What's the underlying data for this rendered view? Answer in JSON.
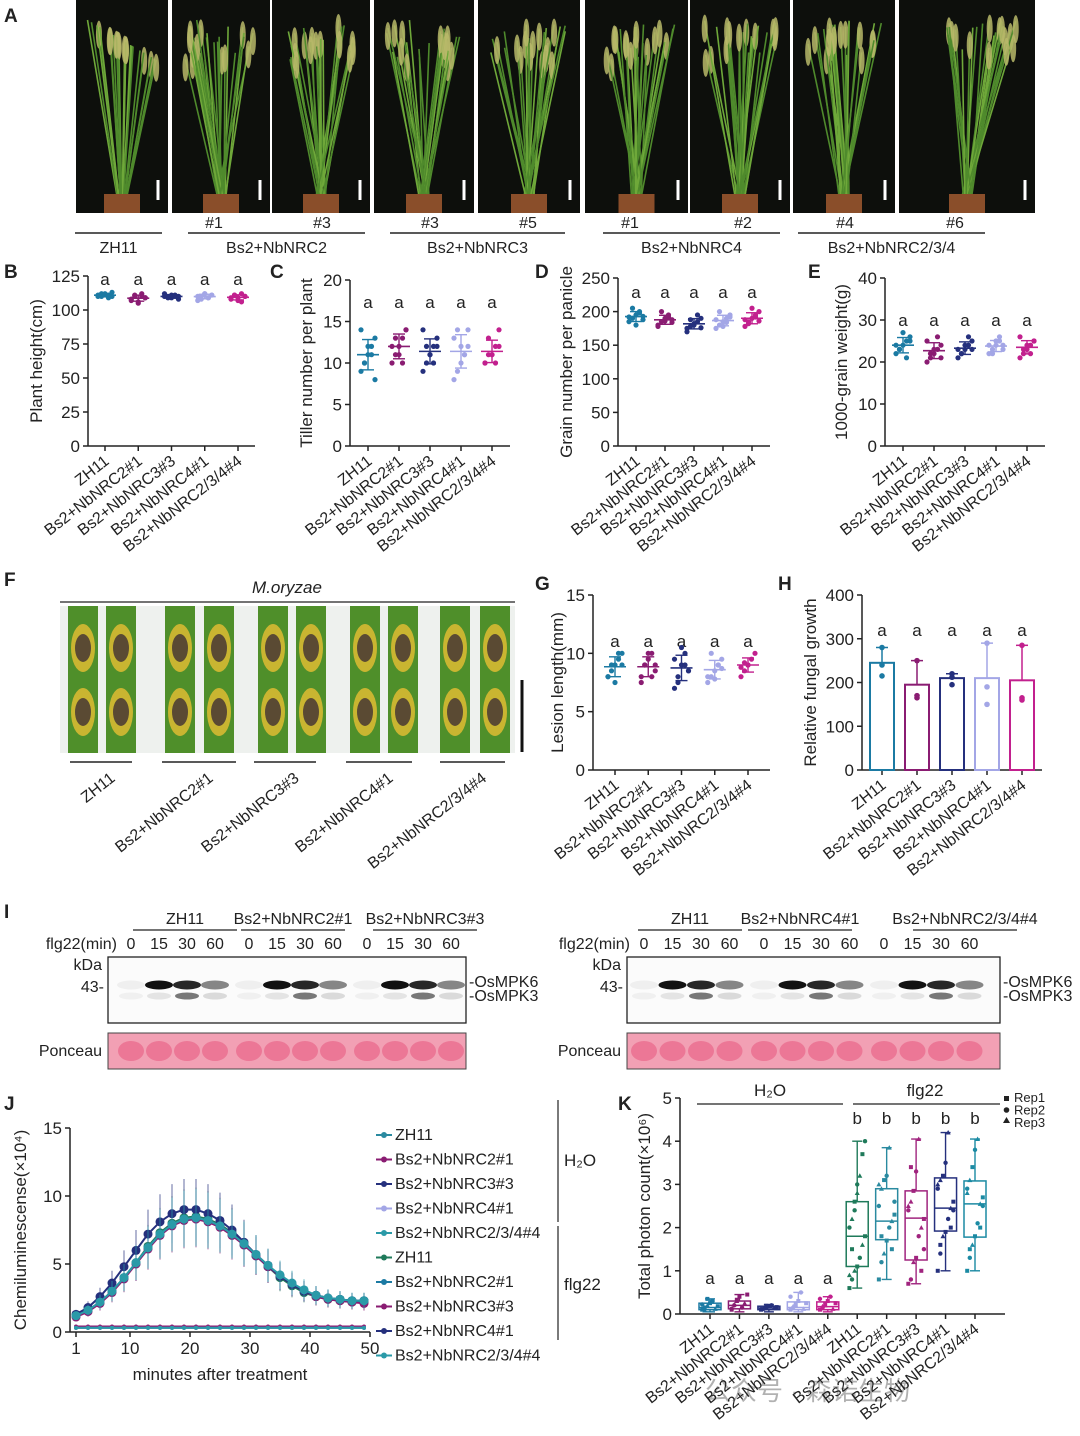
{
  "panel_labels": {
    "A": "A",
    "B": "B",
    "C": "C",
    "D": "D",
    "E": "E",
    "F": "F",
    "G": "G",
    "H": "H",
    "I": "I",
    "J": "J",
    "K": "K"
  },
  "colors": [
    "#1b7aa3",
    "#8a1c72",
    "#25307d",
    "#a3a6e6",
    "#c2208e"
  ],
  "panelA": {
    "sub_labels": [
      "#1",
      "#3",
      "#3",
      "#5",
      "#1",
      "#2",
      "#4",
      "#6"
    ],
    "groups": [
      "ZH11",
      "Bs2+NbNRC2",
      "Bs2+NbNRC3",
      "Bs2+NbNRC4",
      "Bs2+NbNRC2/3/4"
    ]
  },
  "panelF": {
    "title": "M.oryzae",
    "groups": [
      "ZH11",
      "Bs2+NbNRC2#1",
      "Bs2+NbNRC3#3",
      "Bs2+NbNRC4#1",
      "Bs2+NbNRC2/3/4#4"
    ]
  },
  "panelI": {
    "treatment": "flg22(min)",
    "times": [
      "0",
      "15",
      "30",
      "60"
    ],
    "kda": "kDa",
    "marker": "43-",
    "bands": [
      "-OsMPK6",
      "-OsMPK3"
    ],
    "loading": "Ponceau",
    "left_groups": [
      "ZH11",
      "Bs2+NbNRC2#1",
      "Bs2+NbNRC3#3"
    ],
    "right_groups": [
      "ZH11",
      "Bs2+NbNRC4#1",
      "Bs2+NbNRC2/3/4#4"
    ]
  },
  "watermark": "公众号 · 森诺生物",
  "chart_data": [
    {
      "panel": "B",
      "type": "scatter",
      "ylabel": "Plant height(cm)",
      "ylim": [
        0,
        125
      ],
      "yticks": [
        0,
        25,
        50,
        75,
        100,
        125
      ],
      "categories": [
        "ZH11",
        "Bs2+NbNRC2#1",
        "Bs2+NbNRC3#3",
        "Bs2+NbNRC4#1",
        "Bs2+NbNRC2/3/4#4"
      ],
      "letters": [
        "a",
        "a",
        "a",
        "a",
        "a"
      ],
      "points": [
        [
          110,
          112,
          111,
          109,
          113,
          111,
          110,
          112,
          111,
          110
        ],
        [
          108,
          110,
          105,
          112,
          109,
          107,
          111,
          106,
          110,
          109
        ],
        [
          110,
          109,
          111,
          110,
          108,
          112,
          110,
          109,
          111,
          110
        ],
        [
          110,
          108,
          112,
          109,
          111,
          107,
          110,
          112,
          109,
          111
        ],
        [
          109,
          111,
          107,
          112,
          110,
          108,
          111,
          109,
          106,
          110
        ]
      ]
    },
    {
      "panel": "C",
      "type": "scatter",
      "ylabel": "Tiller number per plant",
      "ylim": [
        0,
        20
      ],
      "yticks": [
        0,
        5,
        10,
        15,
        20
      ],
      "categories": [
        "ZH11",
        "Bs2+NbNRC2#1",
        "Bs2+NbNRC3#3",
        "Bs2+NbNRC4#1",
        "Bs2+NbNRC2/3/4#4"
      ],
      "letters": [
        "a",
        "a",
        "a",
        "a",
        "a"
      ],
      "points": [
        [
          9,
          10,
          11,
          12,
          13,
          14,
          10,
          12,
          11,
          8
        ],
        [
          10,
          11,
          12,
          13,
          14,
          12,
          13,
          11,
          10,
          14
        ],
        [
          9,
          10,
          11,
          12,
          13,
          14,
          12,
          11,
          10,
          12
        ],
        [
          8,
          9,
          10,
          11,
          12,
          13,
          14,
          12,
          11,
          14
        ],
        [
          10,
          11,
          11,
          12,
          12,
          10,
          13,
          11,
          10,
          14
        ]
      ]
    },
    {
      "panel": "D",
      "type": "scatter",
      "ylabel": "Grain number per panicle",
      "ylim": [
        0,
        250
      ],
      "yticks": [
        0,
        50,
        100,
        150,
        200,
        250
      ],
      "categories": [
        "ZH11",
        "Bs2+NbNRC2#1",
        "Bs2+NbNRC3#3",
        "Bs2+NbNRC4#1",
        "Bs2+NbNRC2/3/4#4"
      ],
      "letters": [
        "a",
        "a",
        "a",
        "a",
        "a"
      ],
      "points": [
        [
          185,
          190,
          195,
          200,
          188,
          192,
          205,
          180,
          198,
          193
        ],
        [
          180,
          185,
          190,
          195,
          188,
          178,
          200,
          186,
          192,
          184
        ],
        [
          170,
          178,
          182,
          185,
          190,
          175,
          188,
          180,
          195,
          176
        ],
        [
          175,
          180,
          185,
          190,
          195,
          188,
          200,
          178,
          184,
          192
        ],
        [
          178,
          185,
          190,
          195,
          200,
          188,
          182,
          205,
          192,
          186
        ]
      ]
    },
    {
      "panel": "E",
      "type": "scatter",
      "ylabel": "1000-grain weight(g)",
      "ylim": [
        0,
        40
      ],
      "yticks": [
        0,
        10,
        20,
        30,
        40
      ],
      "categories": [
        "ZH11",
        "Bs2+NbNRC2#1",
        "Bs2+NbNRC3#3",
        "Bs2+NbNRC4#1",
        "Bs2+NbNRC2/3/4#4"
      ],
      "letters": [
        "a",
        "a",
        "a",
        "a",
        "a"
      ],
      "points": [
        [
          22,
          23,
          24,
          25,
          26,
          24,
          23,
          27,
          21,
          25
        ],
        [
          20,
          21,
          22,
          23,
          24,
          25,
          22,
          23,
          26,
          21
        ],
        [
          21,
          22,
          23,
          24,
          25,
          23,
          22,
          24,
          26,
          23
        ],
        [
          22,
          23,
          24,
          25,
          23,
          24,
          22,
          25,
          26,
          24
        ],
        [
          21,
          22,
          23,
          24,
          25,
          26,
          23,
          24,
          22,
          25
        ]
      ]
    },
    {
      "panel": "G",
      "type": "scatter",
      "ylabel": "Lesion length(mm)",
      "ylim": [
        0,
        15
      ],
      "yticks": [
        0,
        5,
        10,
        15
      ],
      "categories": [
        "ZH11",
        "Bs2+NbNRC2#1",
        "Bs2+NbNRC3#3",
        "Bs2+NbNRC4#1",
        "Bs2+NbNRC2/3/4#4"
      ],
      "letters": [
        "a",
        "a",
        "a",
        "a",
        "a"
      ],
      "points": [
        [
          8,
          8.5,
          9,
          9.5,
          10,
          8,
          9,
          7.5,
          10,
          9
        ],
        [
          8,
          9,
          9.5,
          10,
          8.5,
          7.5,
          9,
          10,
          8,
          9
        ],
        [
          7,
          8,
          9,
          10,
          8.5,
          9.5,
          7.5,
          10.5,
          9,
          8.5
        ],
        [
          7.5,
          8,
          8.5,
          9,
          9.5,
          8,
          10,
          7.8,
          9,
          8.7
        ],
        [
          8,
          8.5,
          9,
          9.5,
          10,
          8.8,
          9.2,
          9
        ]
      ]
    },
    {
      "panel": "H",
      "type": "bar",
      "ylabel": "Relative fungal growth",
      "ylim": [
        0,
        400
      ],
      "yticks": [
        0,
        100,
        200,
        300,
        400
      ],
      "categories": [
        "ZH11",
        "Bs2+NbNRC2#1",
        "Bs2+NbNRC3#3",
        "Bs2+NbNRC4#1",
        "Bs2+NbNRC2/3/4#4"
      ],
      "letters": [
        "a",
        "a",
        "a",
        "a",
        "a"
      ],
      "values": [
        245,
        195,
        210,
        210,
        205
      ],
      "points": [
        [
          280,
          215,
          240
        ],
        [
          250,
          165,
          170
        ],
        [
          220,
          195,
          212
        ],
        [
          290,
          150,
          190
        ],
        [
          285,
          165,
          160
        ]
      ]
    },
    {
      "panel": "J",
      "type": "line",
      "xlabel": "minutes after treatment",
      "ylabel": "Chemiluminescense(×10⁴)",
      "xlim": [
        0,
        50
      ],
      "xticks": [
        1,
        10,
        20,
        30,
        40,
        50
      ],
      "ylim": [
        0,
        15
      ],
      "yticks": [
        0,
        5,
        10,
        15
      ],
      "x": [
        1,
        3,
        5,
        7,
        9,
        11,
        13,
        15,
        17,
        19,
        21,
        23,
        25,
        27,
        29,
        31,
        33,
        35,
        37,
        39,
        41,
        43,
        45,
        47,
        49
      ],
      "legend_groups": [
        "H₂O",
        "flg22"
      ],
      "series": [
        {
          "name": "ZH11",
          "group": "H2O",
          "color": "#2a8aa0",
          "values": [
            0.3,
            0.3,
            0.3,
            0.3,
            0.3,
            0.3,
            0.3,
            0.3,
            0.3,
            0.3,
            0.3,
            0.3,
            0.3,
            0.3,
            0.3,
            0.3,
            0.3,
            0.3,
            0.3,
            0.3,
            0.3,
            0.3,
            0.3,
            0.3,
            0.3
          ]
        },
        {
          "name": "Bs2+NbNRC2#1",
          "group": "H2O",
          "color": "#8a1c72",
          "values": [
            0.4,
            0.4,
            0.4,
            0.4,
            0.4,
            0.4,
            0.4,
            0.4,
            0.4,
            0.4,
            0.4,
            0.4,
            0.4,
            0.4,
            0.4,
            0.4,
            0.4,
            0.4,
            0.4,
            0.4,
            0.4,
            0.4,
            0.4,
            0.4,
            0.4
          ]
        },
        {
          "name": "Bs2+NbNRC3#3",
          "group": "H2O",
          "color": "#25307d",
          "values": [
            0.3,
            0.3,
            0.3,
            0.3,
            0.3,
            0.3,
            0.3,
            0.3,
            0.3,
            0.3,
            0.3,
            0.3,
            0.3,
            0.3,
            0.3,
            0.3,
            0.3,
            0.3,
            0.3,
            0.3,
            0.3,
            0.3,
            0.3,
            0.3,
            0.3
          ]
        },
        {
          "name": "Bs2+NbNRC4#1",
          "group": "H2O",
          "color": "#a3a6e6",
          "values": [
            0.3,
            0.3,
            0.3,
            0.3,
            0.3,
            0.3,
            0.3,
            0.3,
            0.3,
            0.3,
            0.3,
            0.3,
            0.3,
            0.3,
            0.3,
            0.3,
            0.3,
            0.3,
            0.3,
            0.3,
            0.3,
            0.3,
            0.3,
            0.3,
            0.3
          ]
        },
        {
          "name": "Bs2+NbNRC2/3/4#4",
          "group": "H2O",
          "color": "#2a9aa8",
          "values": [
            0.3,
            0.3,
            0.3,
            0.3,
            0.3,
            0.3,
            0.3,
            0.3,
            0.3,
            0.3,
            0.3,
            0.3,
            0.3,
            0.3,
            0.3,
            0.3,
            0.3,
            0.3,
            0.3,
            0.3,
            0.3,
            0.3,
            0.3,
            0.3,
            0.3
          ]
        },
        {
          "name": "ZH11",
          "group": "flg22",
          "color": "#1f7a5a",
          "values": [
            1.2,
            1.6,
            2.2,
            3.0,
            4.0,
            5.1,
            6.3,
            7.3,
            8.0,
            8.4,
            8.5,
            8.3,
            7.9,
            7.3,
            6.5,
            5.6,
            4.8,
            4.0,
            3.4,
            2.9,
            2.6,
            2.4,
            2.3,
            2.2,
            2.2
          ]
        },
        {
          "name": "Bs2+NbNRC2#1",
          "group": "flg22",
          "color": "#1b7aa3",
          "values": [
            1.2,
            1.6,
            2.2,
            3.0,
            4.0,
            5.0,
            6.2,
            7.2,
            7.9,
            8.3,
            8.4,
            8.2,
            7.8,
            7.2,
            6.4,
            5.6,
            4.8,
            4.1,
            3.5,
            3.0,
            2.7,
            2.5,
            2.4,
            2.3,
            2.3
          ]
        },
        {
          "name": "Bs2+NbNRC3#3",
          "group": "flg22",
          "color": "#8a1c72",
          "values": [
            1.1,
            1.5,
            2.1,
            2.9,
            3.9,
            5.0,
            6.1,
            7.1,
            7.8,
            8.2,
            8.3,
            8.1,
            7.7,
            7.1,
            6.4,
            5.6,
            4.8,
            4.1,
            3.5,
            3.0,
            2.6,
            2.4,
            2.3,
            2.2,
            2.1
          ]
        },
        {
          "name": "Bs2+NbNRC4#1",
          "group": "flg22",
          "color": "#25307d",
          "values": [
            1.3,
            1.8,
            2.6,
            3.6,
            4.8,
            6.0,
            7.2,
            8.1,
            8.7,
            9.0,
            9.0,
            8.7,
            8.2,
            7.5,
            6.6,
            5.7,
            4.9,
            4.1,
            3.5,
            3.0,
            2.7,
            2.5,
            2.4,
            2.3,
            2.3
          ]
        },
        {
          "name": "Bs2+NbNRC2/3/4#4",
          "group": "flg22",
          "color": "#2a9aa8",
          "values": [
            1.2,
            1.6,
            2.2,
            3.0,
            4.0,
            5.1,
            6.2,
            7.2,
            7.9,
            8.3,
            8.4,
            8.2,
            7.8,
            7.2,
            6.5,
            5.7,
            4.9,
            4.2,
            3.6,
            3.1,
            2.7,
            2.5,
            2.4,
            2.3,
            2.3
          ]
        }
      ]
    },
    {
      "panel": "K",
      "type": "box",
      "ylabel": "Total photon count(×10⁶)",
      "ylim": [
        0,
        5
      ],
      "yticks": [
        0,
        1,
        2,
        3,
        4,
        5
      ],
      "group_labels": [
        "H₂O",
        "flg22"
      ],
      "legend": [
        "Rep1",
        "Rep2",
        "Rep3"
      ],
      "categories": [
        "ZH11",
        "Bs2+NbNRC2#1",
        "Bs2+NbNRC3#3",
        "Bs2+NbNRC4#1",
        "Bs2+NbNRC2/3/4#4",
        "ZH11",
        "Bs2+NbNRC2#1",
        "Bs2+NbNRC3#3",
        "Bs2+NbNRC4#1",
        "Bs2+NbNRC2/3/4#4"
      ],
      "colors": [
        "#1b7aa3",
        "#8a1c72",
        "#25307d",
        "#a3a6e6",
        "#c2208e",
        "#1f7a5a",
        "#2a8aa0",
        "#a0247e",
        "#25307d",
        "#1b8aa3"
      ],
      "letters": [
        "a",
        "a",
        "a",
        "a",
        "a",
        "b",
        "b",
        "b",
        "b",
        "b"
      ],
      "boxes": [
        {
          "min": 0.05,
          "q1": 0.1,
          "median": 0.15,
          "q3": 0.25,
          "max": 0.35
        },
        {
          "min": 0.05,
          "q1": 0.12,
          "median": 0.2,
          "q3": 0.3,
          "max": 0.45
        },
        {
          "min": 0.05,
          "q1": 0.1,
          "median": 0.14,
          "q3": 0.18,
          "max": 0.22
        },
        {
          "min": 0.05,
          "q1": 0.1,
          "median": 0.15,
          "q3": 0.28,
          "max": 0.5
        },
        {
          "min": 0.05,
          "q1": 0.1,
          "median": 0.17,
          "q3": 0.28,
          "max": 0.4
        },
        {
          "min": 0.6,
          "q1": 1.1,
          "median": 1.8,
          "q3": 2.6,
          "max": 4.0
        },
        {
          "min": 0.8,
          "q1": 1.72,
          "median": 2.15,
          "q3": 2.9,
          "max": 3.85
        },
        {
          "min": 0.7,
          "q1": 1.25,
          "median": 2.22,
          "q3": 2.85,
          "max": 4.05
        },
        {
          "min": 1.0,
          "q1": 1.92,
          "median": 2.45,
          "q3": 3.15,
          "max": 4.2
        },
        {
          "min": 1.0,
          "q1": 1.78,
          "median": 2.55,
          "q3": 3.08,
          "max": 4.05
        }
      ],
      "points": [
        [
          0.1,
          0.15,
          0.2,
          0.25,
          0.3,
          0.12,
          0.18,
          0.22,
          0.08,
          0.35
        ],
        [
          0.1,
          0.2,
          0.3,
          0.4,
          0.15,
          0.25,
          0.45,
          0.12,
          0.22,
          0.33
        ],
        [
          0.1,
          0.12,
          0.15,
          0.18,
          0.2,
          0.14,
          0.16,
          0.11,
          0.13,
          0.19
        ],
        [
          0.1,
          0.15,
          0.2,
          0.3,
          0.5,
          0.12,
          0.25,
          0.4,
          0.18,
          0.22
        ],
        [
          0.1,
          0.15,
          0.2,
          0.3,
          0.4,
          0.12,
          0.25,
          0.35,
          0.18,
          0.22
        ],
        [
          0.6,
          0.8,
          1.0,
          1.1,
          1.3,
          1.6,
          1.8,
          2.0,
          2.2,
          2.6,
          3.0,
          3.2,
          3.7,
          4.0,
          0.9,
          1.5,
          2.4,
          2.8
        ],
        [
          0.8,
          1.2,
          1.4,
          1.7,
          2.0,
          2.15,
          2.3,
          2.5,
          2.9,
          3.1,
          3.2,
          3.85,
          1.5,
          2.6,
          3.0,
          1.8
        ],
        [
          0.7,
          0.8,
          1.2,
          1.3,
          1.8,
          2.0,
          2.2,
          2.4,
          2.6,
          2.85,
          3.3,
          4.05,
          1.0,
          1.5,
          2.5,
          3.4
        ],
        [
          1.0,
          1.4,
          1.8,
          1.9,
          2.2,
          2.45,
          2.6,
          2.9,
          3.1,
          3.2,
          3.5,
          4.2,
          2.0,
          2.4,
          3.0,
          1.6
        ],
        [
          1.0,
          1.3,
          1.6,
          1.8,
          2.1,
          2.55,
          2.7,
          2.9,
          3.1,
          3.4,
          3.8,
          4.05,
          2.0,
          2.5,
          2.8,
          1.5
        ]
      ]
    }
  ]
}
